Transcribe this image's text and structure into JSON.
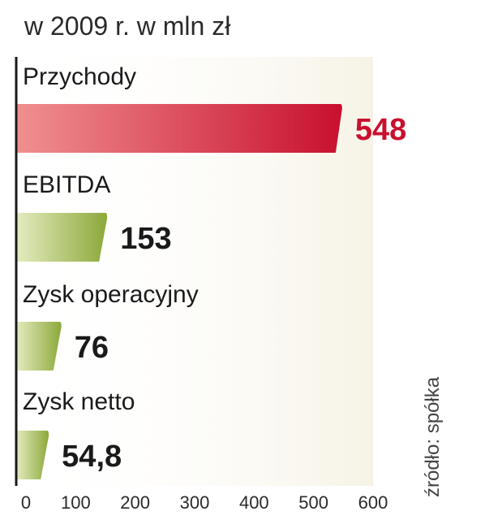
{
  "title": "w 2009 r. w mln zł",
  "source": "źródło: spółka",
  "colors": {
    "highlight_bar_start": "#f09090",
    "highlight_bar_end": "#c8102e",
    "bar_start": "#e4ecc0",
    "bar_end": "#8ca83a",
    "highlight_value": "#c8102e",
    "value": "#1a1a1a",
    "axis": "#1a1a1a",
    "grid": "#ffffff",
    "background_fade": "#f6f3e6"
  },
  "chart_data": {
    "type": "bar",
    "orientation": "horizontal",
    "categories": [
      "Przychody",
      "EBITDA",
      "Zysk operacyjny",
      "Zysk netto"
    ],
    "values": [
      548,
      153,
      76,
      54.8
    ],
    "value_labels": [
      "548",
      "153",
      "76",
      "54,8"
    ],
    "highlight_index": 0,
    "xlim": [
      0,
      600
    ],
    "xticks": [
      "0",
      "100",
      "200",
      "300",
      "400",
      "500",
      "600"
    ],
    "grid": true
  }
}
